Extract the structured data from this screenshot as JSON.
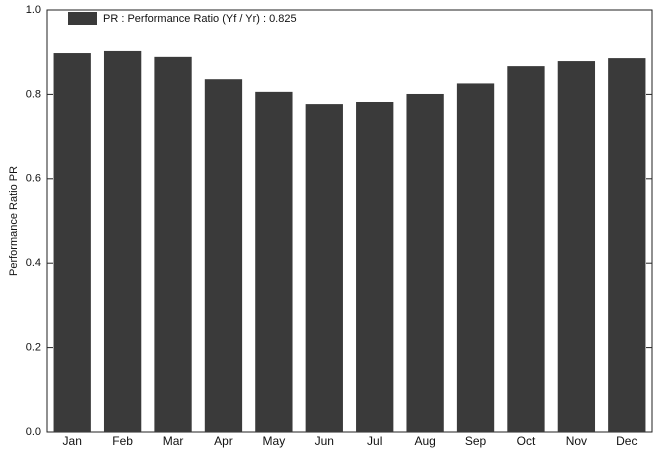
{
  "chart_data": {
    "type": "bar",
    "y_label": "Performance Ratio PR",
    "categories": [
      "Jan",
      "Feb",
      "Mar",
      "Apr",
      "May",
      "Jun",
      "Jul",
      "Aug",
      "Sep",
      "Oct",
      "Nov",
      "Dec"
    ],
    "series": [
      {
        "name": "PR : Performance Ratio (Yf / Yr) :  0.825",
        "color": "#3a3a3a",
        "values": [
          0.898,
          0.903,
          0.889,
          0.836,
          0.806,
          0.777,
          0.782,
          0.801,
          0.826,
          0.867,
          0.879,
          0.886
        ]
      }
    ],
    "ylim": [
      0,
      1.0
    ],
    "yticks": [
      {
        "value": 0,
        "label": "0.0"
      },
      0.2,
      0.4,
      0.6,
      0.8,
      {
        "value": 1.0,
        "label": "1.0"
      }
    ],
    "grid": false
  }
}
